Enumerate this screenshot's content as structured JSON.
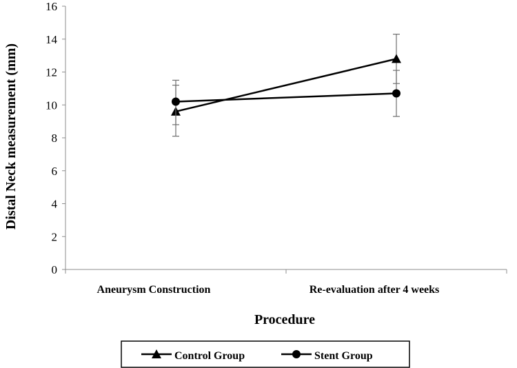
{
  "chart_data": {
    "type": "line",
    "title": "",
    "xlabel": "Procedure",
    "ylabel": "Distal Neck measurement (mm)",
    "categories": [
      "Aneurysm Construction",
      "Re-evaluation after 4 weeks"
    ],
    "ylim": [
      0,
      16
    ],
    "yticks": [
      0,
      2,
      4,
      6,
      8,
      10,
      12,
      14,
      16
    ],
    "grid": false,
    "legend_position": "bottom",
    "series": [
      {
        "name": "Control Group",
        "marker": "triangle",
        "color": "#000000",
        "values": [
          9.6,
          12.8
        ],
        "error_low": [
          8.1,
          11.3
        ],
        "error_high": [
          11.2,
          14.3
        ]
      },
      {
        "name": "Stent Group",
        "marker": "circle",
        "color": "#000000",
        "values": [
          10.2,
          10.7
        ],
        "error_low": [
          8.8,
          9.3
        ],
        "error_high": [
          11.5,
          12.1
        ]
      }
    ]
  }
}
